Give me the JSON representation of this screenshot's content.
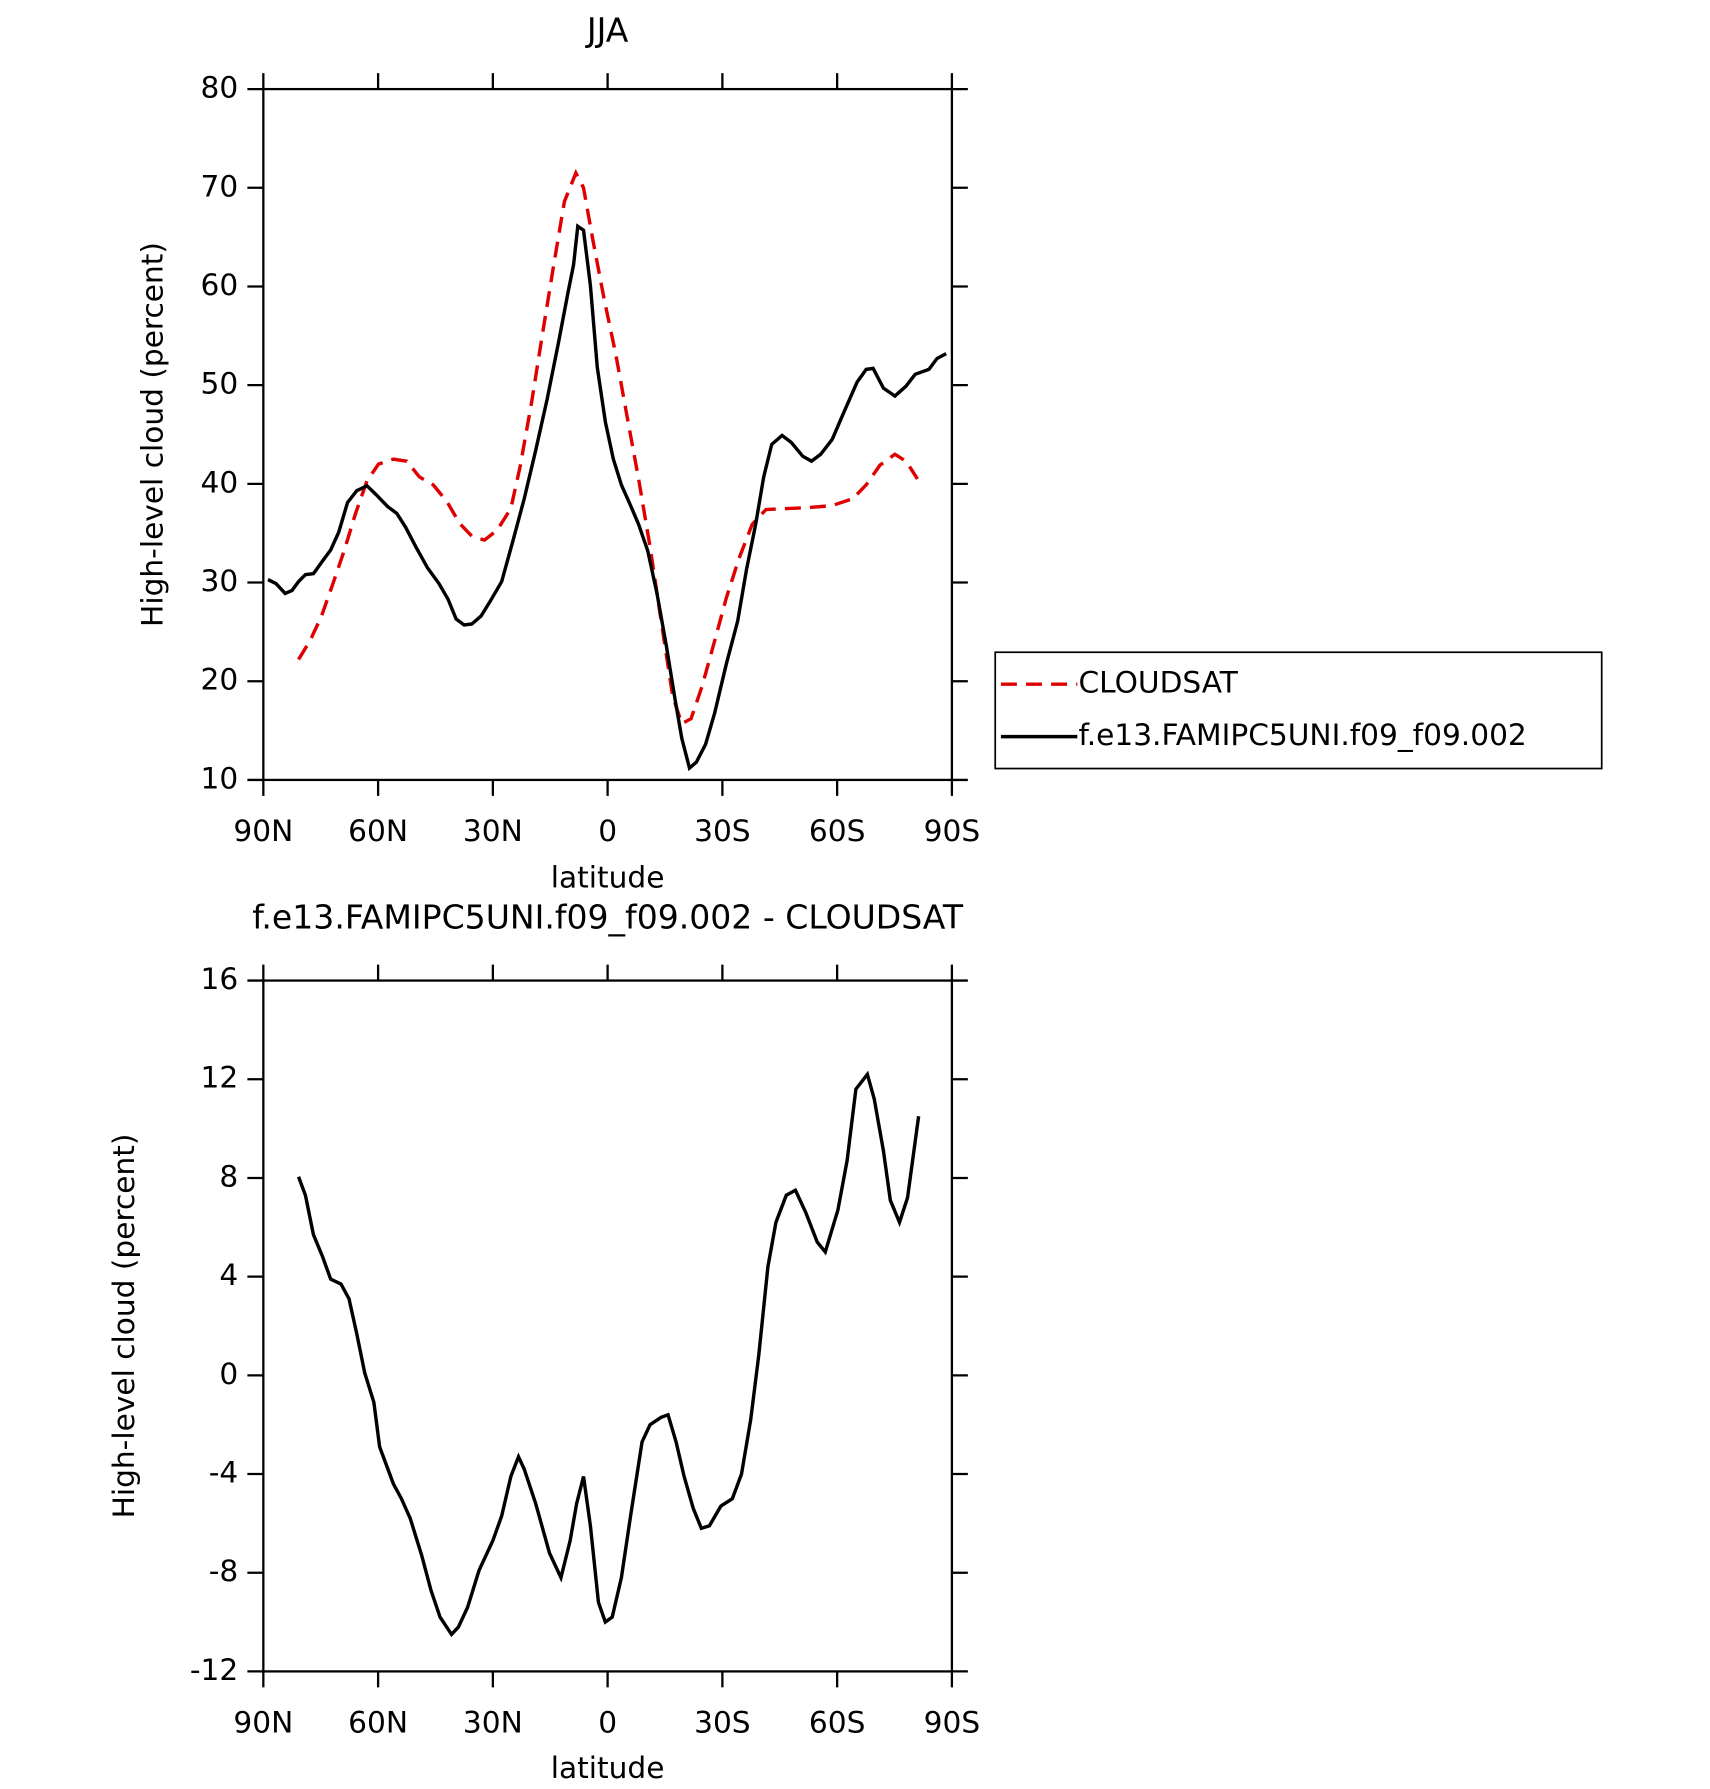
{
  "chart_data": [
    {
      "type": "line",
      "title": "JJA",
      "xlabel": "latitude",
      "ylabel": "High-level cloud (percent)",
      "xlim": [
        90,
        -90
      ],
      "xticks": [
        {
          "value": 90,
          "label": "90N"
        },
        {
          "value": 60,
          "label": "60N"
        },
        {
          "value": 30,
          "label": "30N"
        },
        0,
        {
          "value": -30,
          "label": "30S"
        },
        {
          "value": -60,
          "label": "60S"
        },
        {
          "value": -90,
          "label": "90S"
        }
      ],
      "ylim": [
        10,
        80
      ],
      "yticks": [
        10,
        20,
        30,
        40,
        50,
        60,
        70,
        80
      ],
      "legend": "right",
      "series": [
        {
          "name": "CLOUDSAT",
          "color": "#e00000",
          "linestyle": "dashed",
          "x": [
            80.8,
            77.8,
            74.8,
            71.8,
            68.8,
            65.9,
            62.9,
            59.9,
            56,
            52.5,
            49.2,
            45.6,
            42,
            38.7,
            35.5,
            32.2,
            28.9,
            25.3,
            22.9,
            19.9,
            16.9,
            14,
            11.3,
            8.3,
            6.3,
            3.9,
            0.9,
            -2.1,
            -5.1,
            -8.1,
            -11.1,
            -14,
            -17,
            -19.4,
            -21.8,
            -24.7,
            -27.7,
            -31,
            -34.3,
            -37.8,
            -41.4,
            -46.8,
            -52.7,
            -58.7,
            -64.1,
            -67.6,
            -71.2,
            -75.1,
            -78,
            -81
          ],
          "values": [
            22.2,
            24.1,
            26.6,
            29.9,
            33.3,
            37.0,
            40.3,
            42.0,
            42.5,
            42.3,
            40.7,
            39.9,
            38.2,
            36.0,
            34.7,
            34.3,
            35.3,
            37.5,
            41.7,
            48.2,
            55.5,
            62.4,
            68.6,
            71.5,
            70.0,
            64.8,
            58.7,
            53.2,
            46.8,
            40.5,
            33.6,
            26.1,
            18.5,
            15.7,
            16.2,
            19.5,
            23.7,
            28.4,
            32.4,
            35.9,
            37.4,
            37.5,
            37.6,
            37.8,
            38.5,
            39.9,
            41.9,
            43.0,
            42.3,
            40.5
          ]
        },
        {
          "name": "f.e13.FAMIPC5UNI.f09_f09.002",
          "color": "#000000",
          "linestyle": "solid",
          "x": [
            88.8,
            86.7,
            84.3,
            82.5,
            80.8,
            79,
            76.9,
            74.5,
            72.4,
            70.3,
            68,
            65.6,
            62.9,
            60.5,
            57.5,
            55.1,
            52.8,
            50.1,
            47.1,
            44.1,
            41.7,
            39.6,
            37.5,
            35.5,
            33.1,
            30.7,
            27.7,
            24.7,
            21.8,
            18.8,
            15.8,
            12.8,
            10.4,
            8.9,
            7.8,
            6.3,
            4.5,
            2.7,
            0.6,
            -1.5,
            -3.6,
            -6,
            -8.1,
            -10.5,
            -12.9,
            -15.3,
            -17.7,
            -19.4,
            -21.4,
            -23.2,
            -25.6,
            -28,
            -31,
            -34,
            -36.3,
            -38.7,
            -40.8,
            -42.9,
            -45.6,
            -48,
            -51,
            -53.3,
            -55.7,
            -58.7,
            -61.7,
            -65.2,
            -67.6,
            -69.4,
            -72.1,
            -75.1,
            -78,
            -80.4,
            -84,
            -86.1,
            -88.5
          ],
          "values": [
            30.3,
            29.9,
            28.9,
            29.2,
            30.1,
            30.8,
            30.9,
            32.2,
            33.3,
            35.1,
            38.1,
            39.3,
            39.8,
            38.9,
            37.7,
            37.0,
            35.6,
            33.6,
            31.5,
            29.9,
            28.3,
            26.3,
            25.7,
            25.8,
            26.6,
            28.1,
            30.1,
            34.3,
            38.5,
            43.4,
            48.6,
            54.4,
            59.3,
            62.2,
            66.1,
            65.7,
            60.1,
            51.8,
            46.3,
            42.5,
            39.9,
            37.8,
            35.9,
            33.2,
            28.9,
            23.7,
            18.0,
            14.2,
            11.2,
            11.8,
            13.6,
            16.8,
            21.7,
            26.1,
            31.3,
            35.9,
            40.7,
            44.0,
            44.9,
            44.2,
            42.8,
            42.3,
            43.0,
            44.5,
            47.2,
            50.3,
            51.6,
            51.7,
            49.7,
            48.9,
            49.9,
            51.1,
            51.6,
            52.7,
            53.2
          ]
        }
      ]
    },
    {
      "type": "line",
      "title": "f.e13.FAMIPC5UNI.f09_f09.002 - CLOUDSAT",
      "xlabel": "latitude",
      "ylabel": "High-level cloud (percent)",
      "xlim": [
        90,
        -90
      ],
      "xticks": [
        {
          "value": 90,
          "label": "90N"
        },
        {
          "value": 60,
          "label": "60N"
        },
        {
          "value": 30,
          "label": "30N"
        },
        0,
        {
          "value": -30,
          "label": "30S"
        },
        {
          "value": -60,
          "label": "60S"
        },
        {
          "value": -90,
          "label": "90S"
        }
      ],
      "ylim": [
        -12,
        16
      ],
      "yticks": [
        -12,
        -8,
        -4,
        0,
        4,
        8,
        12,
        16
      ],
      "series": [
        {
          "color": "#000000",
          "linestyle": "solid",
          "x": [
            80.8,
            79,
            76.9,
            74.5,
            72.4,
            69.7,
            67.6,
            65.6,
            63.5,
            61.1,
            59.6,
            56,
            53.9,
            51.6,
            48.6,
            46.2,
            43.8,
            40.8,
            39,
            36.6,
            33.6,
            30,
            27.7,
            25.3,
            23.3,
            21.8,
            18.8,
            15.2,
            12.2,
            9.8,
            8.1,
            6.3,
            4.5,
            2.4,
            0.6,
            -1.2,
            -3.6,
            -6,
            -9,
            -11.1,
            -14,
            -15.8,
            -17.9,
            -20,
            -22.4,
            -24.5,
            -26.6,
            -29.6,
            -32.6,
            -35,
            -37.4,
            -39.5,
            -41.9,
            -44,
            -46.7,
            -49.1,
            -51.8,
            -54.8,
            -56.9,
            -60.2,
            -62.6,
            -64.9,
            -67.9,
            -69.7,
            -72.1,
            -73.9,
            -76.3,
            -78.4,
            -81.3
          ],
          "values": [
            8.05,
            7.3,
            5.7,
            4.8,
            3.9,
            3.7,
            3.1,
            1.7,
            0.1,
            -1.1,
            -2.9,
            -4.4,
            -5.0,
            -5.8,
            -7.3,
            -8.7,
            -9.8,
            -10.5,
            -10.2,
            -9.4,
            -7.9,
            -6.7,
            -5.7,
            -4.1,
            -3.3,
            -3.8,
            -5.2,
            -7.2,
            -8.2,
            -6.7,
            -5.2,
            -4.1,
            -6.1,
            -9.2,
            -10.0,
            -9.8,
            -8.2,
            -5.7,
            -2.7,
            -2.0,
            -1.7,
            -1.6,
            -2.7,
            -4.1,
            -5.4,
            -6.2,
            -6.1,
            -5.3,
            -5.0,
            -4.0,
            -1.8,
            0.8,
            4.4,
            6.2,
            7.3,
            7.5,
            6.6,
            5.4,
            5.0,
            6.7,
            8.7,
            11.6,
            12.2,
            11.2,
            9.1,
            7.1,
            6.2,
            7.2,
            10.5
          ]
        }
      ]
    }
  ]
}
